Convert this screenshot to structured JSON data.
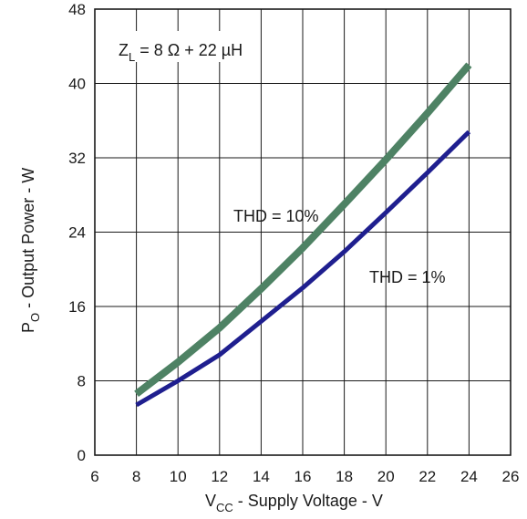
{
  "chart_data": {
    "type": "line",
    "xlim": [
      6,
      26
    ],
    "ylim": [
      0,
      48
    ],
    "x_ticks": [
      6,
      8,
      10,
      12,
      14,
      16,
      18,
      20,
      22,
      24,
      26
    ],
    "y_ticks": [
      0,
      8,
      16,
      24,
      32,
      40,
      48
    ],
    "grid": true,
    "xlabel": {
      "main": "V",
      "sub": "CC",
      "rest": " - Supply Voltage - V"
    },
    "ylabel": {
      "main": "P",
      "sub": "O",
      "rest": " - Output Power - W"
    },
    "condition": {
      "main": "Z",
      "sub": "L",
      "rest": " = 8 Ω + 22 µH"
    },
    "series": [
      {
        "name": "THD = 10%",
        "color": "#4e8264",
        "x": [
          8,
          10,
          12,
          14,
          16,
          18,
          20,
          22,
          24
        ],
        "y": [
          6.6,
          10.0,
          13.7,
          17.9,
          22.3,
          27.0,
          31.8,
          36.8,
          42.0
        ]
      },
      {
        "name": "THD = 1%",
        "color": "#1f1f8f",
        "x": [
          8,
          10,
          12,
          14,
          16,
          18,
          20,
          22,
          24
        ],
        "y": [
          5.4,
          8.0,
          10.8,
          14.4,
          18.0,
          21.9,
          26.1,
          30.4,
          34.8
        ]
      }
    ]
  }
}
